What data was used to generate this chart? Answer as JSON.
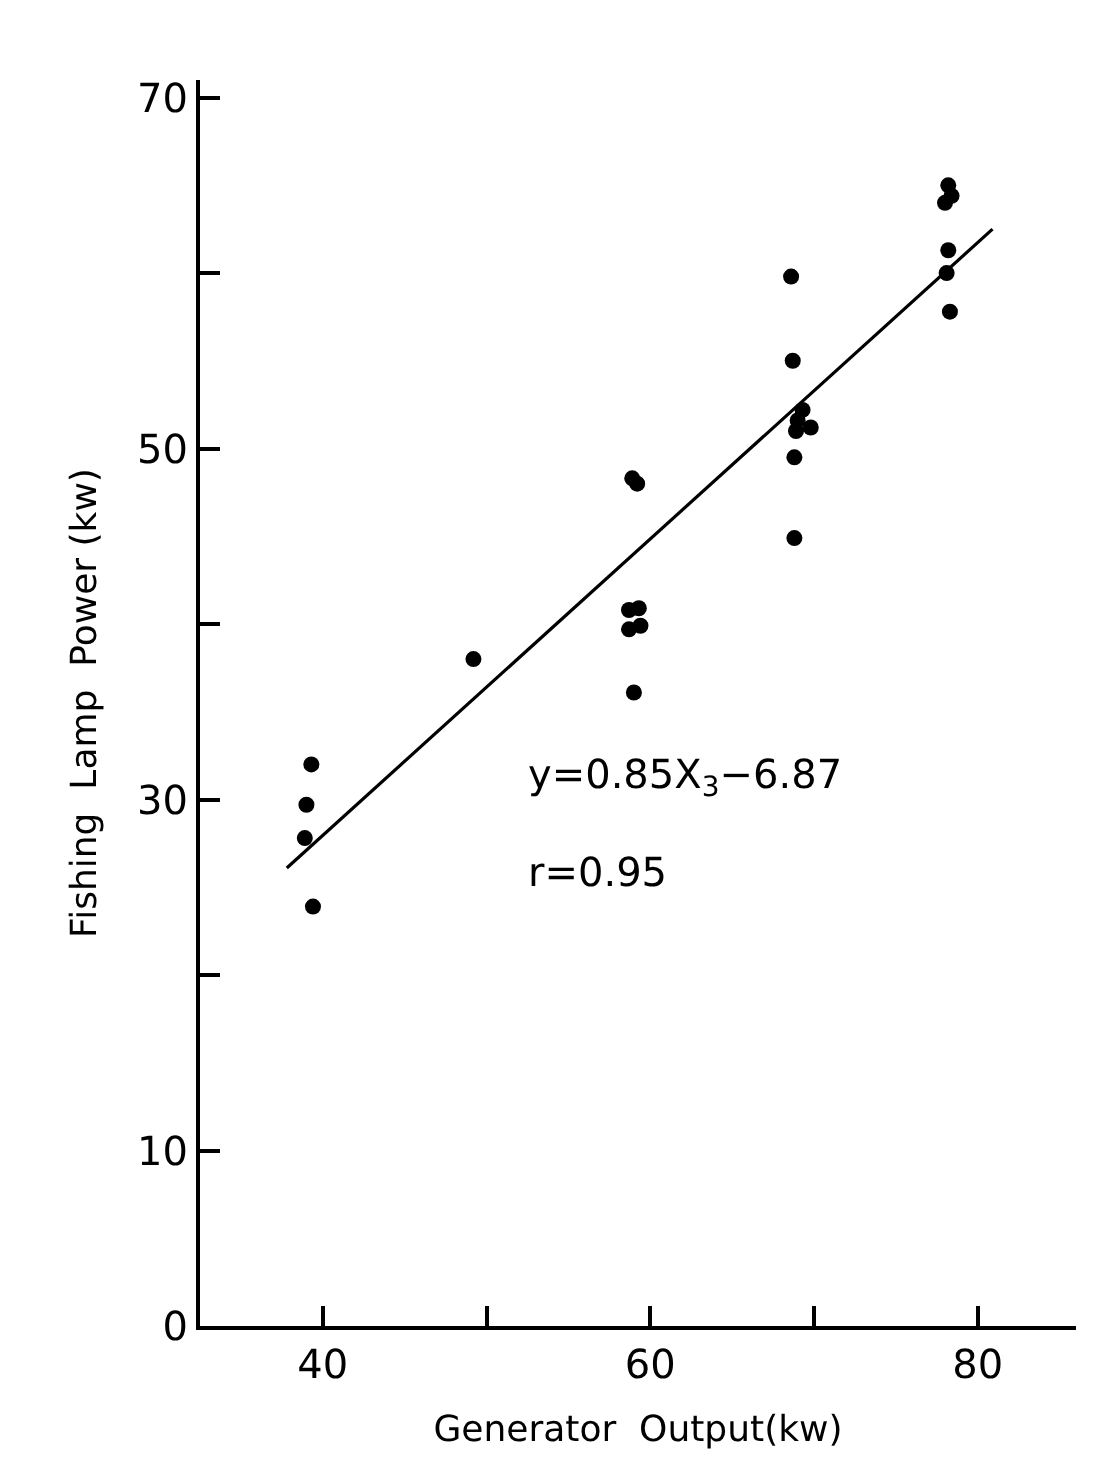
{
  "chart_data": {
    "type": "scatter",
    "xlabel": "Generator  Output(kw)",
    "ylabel": "Fishing  Lamp  Power (kw)",
    "annotations": [
      "y=0.85X$_{3}$−6.87",
      "r=0.95"
    ],
    "series": [
      {
        "color": "#000000",
        "x": [
          78.2,
          78.4,
          78.0,
          78.2,
          78.1,
          78.3,
          68.6,
          68.7,
          69.3,
          69.0,
          69.8,
          68.9,
          68.8,
          68.8,
          58.9,
          59.2,
          58.7,
          59.3,
          59.4,
          58.7,
          59.0,
          49.2,
          39.3,
          39.0,
          38.9,
          39.4
        ],
        "values": [
          65,
          64.4,
          64.0,
          61.3,
          60.0,
          57.8,
          59.8,
          55.0,
          52.2,
          51.6,
          51.2,
          51.0,
          49.5,
          44.9,
          48.3,
          48.0,
          40.8,
          40.9,
          39.9,
          39.7,
          36.1,
          38.0,
          32.0,
          29.7,
          27.8,
          23.9
        ]
      },
      {
        "type": "line",
        "color": "#000000",
        "marker": "none",
        "x": [
          37.8,
          80.9
        ],
        "values": [
          26.1,
          62.5
        ]
      }
    ],
    "xlim": [
      32.5,
      86
    ],
    "ylim": [
      0,
      71
    ],
    "xticks": [
      40,
      {
        "value": 50,
        "label": null
      },
      60,
      {
        "value": 70,
        "label": null
      },
      80
    ],
    "yticks": [
      0,
      10,
      {
        "value": 20,
        "label": null
      },
      30,
      {
        "value": 40,
        "label": null
      },
      50,
      {
        "value": 60,
        "label": null
      },
      70
    ],
    "marker": "circle"
  }
}
